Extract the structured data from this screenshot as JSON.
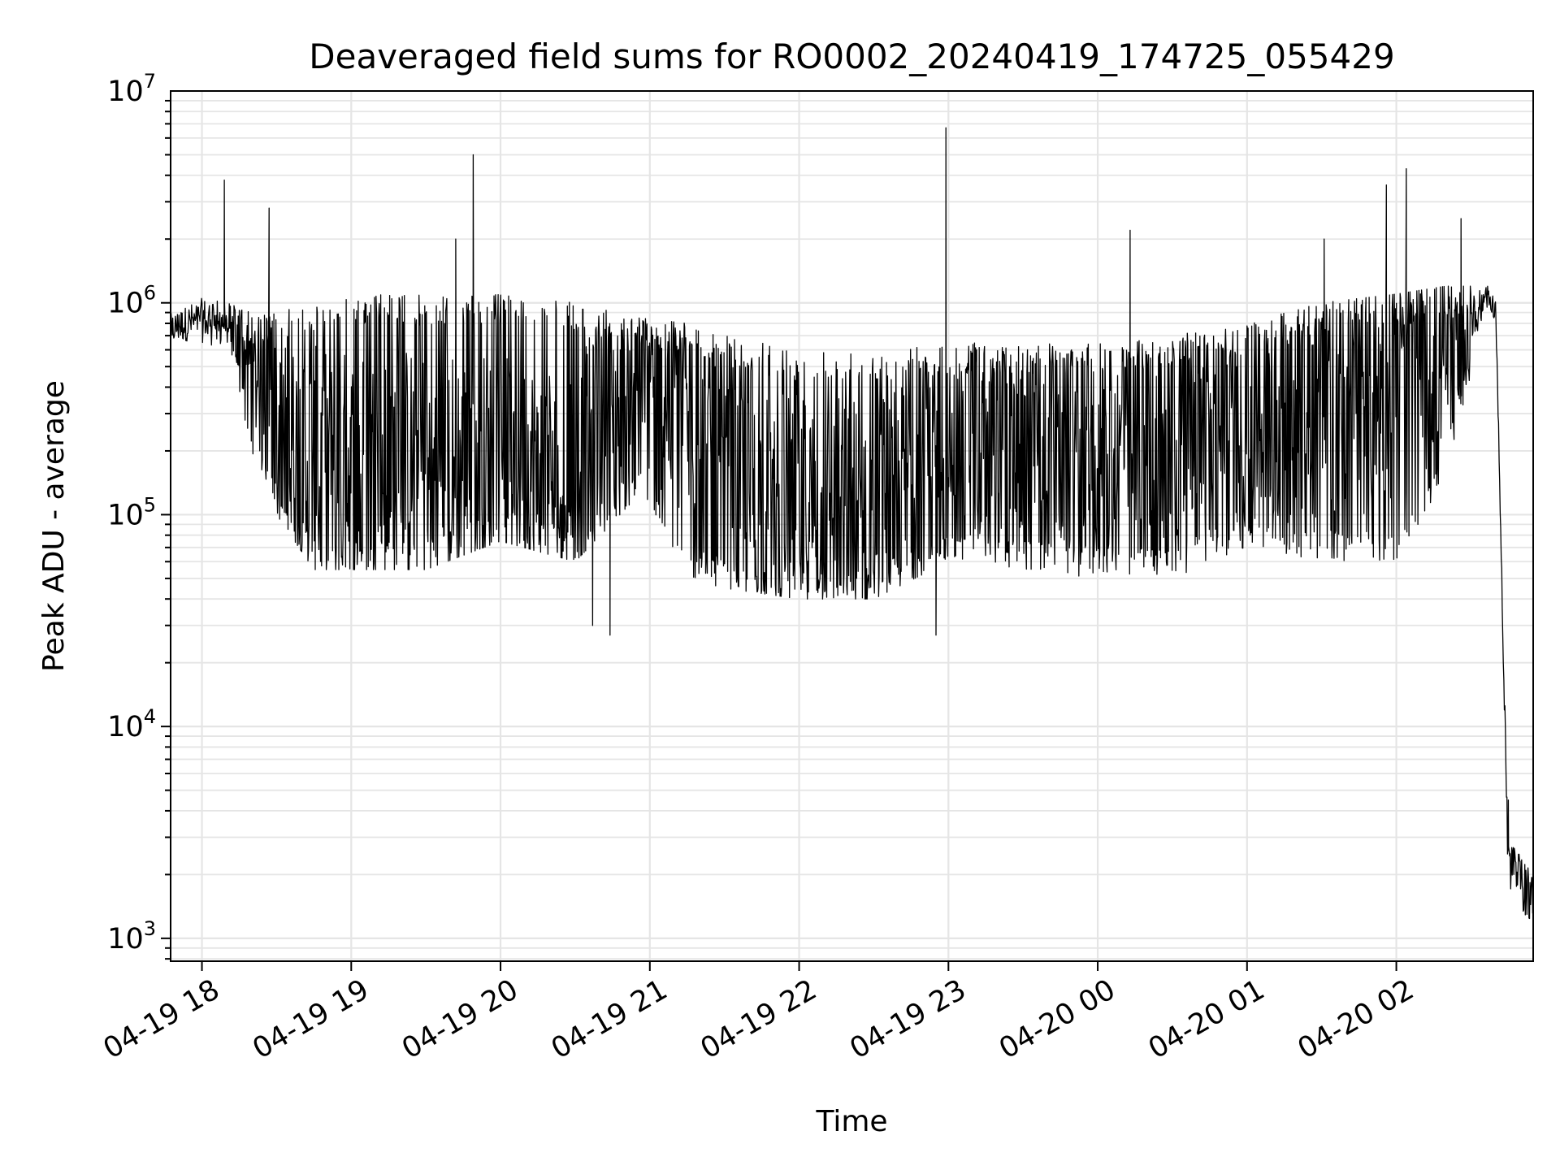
{
  "chart_data": {
    "type": "line",
    "title": "Deaveraged field sums for RO0002_20240419_174725_055429",
    "xlabel": "Time",
    "ylabel": "Peak ADU - average",
    "yscale": "log",
    "ylim": [
      780,
      10000000
    ],
    "xlim": [
      "2024-04-19 17:47:25",
      "2024-04-20 02:55:00"
    ],
    "grid": true,
    "line_color": "#000000",
    "grid_color": "#e5e5e5",
    "x_ticks": [
      {
        "value": "2024-04-19 18:00",
        "label": "04-19 18"
      },
      {
        "value": "2024-04-19 19:00",
        "label": "04-19 19"
      },
      {
        "value": "2024-04-19 20:00",
        "label": "04-19 20"
      },
      {
        "value": "2024-04-19 21:00",
        "label": "04-19 21"
      },
      {
        "value": "2024-04-19 22:00",
        "label": "04-19 22"
      },
      {
        "value": "2024-04-19 23:00",
        "label": "04-19 23"
      },
      {
        "value": "2024-04-20 00:00",
        "label": "04-20 00"
      },
      {
        "value": "2024-04-20 01:00",
        "label": "04-20 01"
      },
      {
        "value": "2024-04-20 02:00",
        "label": "04-20 02"
      }
    ],
    "y_ticks": [
      {
        "value": 1000,
        "base": "10",
        "exp": "3"
      },
      {
        "value": 10000,
        "base": "10",
        "exp": "4"
      },
      {
        "value": 100000,
        "base": "10",
        "exp": "5"
      },
      {
        "value": 1000000,
        "base": "10",
        "exp": "6"
      },
      {
        "value": 10000000,
        "base": "10",
        "exp": "7"
      }
    ],
    "series": [
      {
        "x": [
          "2024-04-19 17:47:25",
          "2024-04-19 18:00",
          "2024-04-19 18:10",
          "2024-04-19 18:20",
          "2024-04-19 18:30",
          "2024-04-19 18:45",
          "2024-04-19 19:00",
          "2024-04-19 19:30",
          "2024-04-19 20:00",
          "2024-04-19 20:30",
          "2024-04-19 20:55",
          "2024-04-19 21:15",
          "2024-04-19 21:30",
          "2024-04-19 22:00",
          "2024-04-19 22:30",
          "2024-04-19 23:00",
          "2024-04-19 23:30",
          "2024-04-20 00:00",
          "2024-04-20 00:30",
          "2024-04-20 01:00",
          "2024-04-20 01:30",
          "2024-04-20 02:00",
          "2024-04-20 02:20",
          "2024-04-20 02:37",
          "2024-04-20 02:40",
          "2024-04-20 02:45",
          "2024-04-20 02:55"
        ],
        "y": [
          750000,
          850000,
          820000,
          500000,
          250000,
          170000,
          160000,
          170000,
          170000,
          160000,
          450000,
          260000,
          120000,
          110000,
          110000,
          180000,
          180000,
          190000,
          200000,
          260000,
          330000,
          390000,
          560000,
          1100000,
          900000,
          2200,
          1500
        ],
        "spread_low": [
          650000,
          650000,
          600000,
          200000,
          100000,
          55000,
          55000,
          55000,
          75000,
          60000,
          120000,
          50000,
          45000,
          40000,
          40000,
          60000,
          55000,
          50000,
          50000,
          70000,
          60000,
          60000,
          150000,
          1000000,
          800000,
          1500,
          1200
        ],
        "spread_high": [
          950000,
          1050000,
          1000000,
          900000,
          900000,
          1000000,
          1100000,
          1100000,
          1100000,
          1000000,
          850000,
          800000,
          700000,
          600000,
          600000,
          650000,
          650000,
          650000,
          700000,
          800000,
          1000000,
          1100000,
          1200000,
          1200000,
          1000000,
          3000,
          2200
        ],
        "spikes": [
          {
            "x": "2024-04-19 18:09",
            "y": 3800000
          },
          {
            "x": "2024-04-19 18:27",
            "y": 2800000
          },
          {
            "x": "2024-04-19 19:49",
            "y": 5000000
          },
          {
            "x": "2024-04-19 19:42",
            "y": 2000000
          },
          {
            "x": "2024-04-19 22:59",
            "y": 6700000
          },
          {
            "x": "2024-04-20 00:13",
            "y": 2200000
          },
          {
            "x": "2024-04-20 01:31",
            "y": 2000000
          },
          {
            "x": "2024-04-20 01:56",
            "y": 3600000
          },
          {
            "x": "2024-04-20 02:04",
            "y": 4300000
          },
          {
            "x": "2024-04-20 02:26",
            "y": 2500000
          },
          {
            "x": "2024-04-19 20:37",
            "y": 30000
          },
          {
            "x": "2024-04-19 20:44",
            "y": 27000
          },
          {
            "x": "2024-04-19 22:55",
            "y": 27000
          },
          {
            "x": "2024-04-20 02:45",
            "y": 4500
          }
        ]
      }
    ]
  }
}
